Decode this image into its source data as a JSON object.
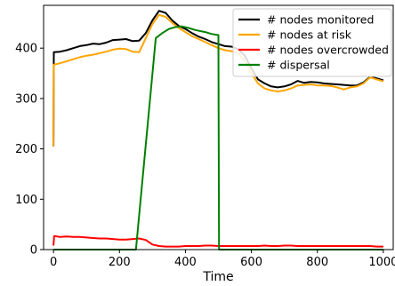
{
  "chart_data": {
    "type": "line",
    "title": "",
    "xlabel": "Time",
    "ylabel": "",
    "xlim": [
      -30,
      1030
    ],
    "ylim": [
      0,
      485
    ],
    "xticks": [
      0,
      200,
      400,
      600,
      800,
      1000
    ],
    "yticks": [
      0,
      100,
      200,
      300,
      400
    ],
    "grid": false,
    "legend_position": "top-right",
    "series": [
      {
        "name": "# nodes monitored",
        "color": "#000000",
        "points": [
          [
            0,
            205
          ],
          [
            1,
            392
          ],
          [
            20,
            393
          ],
          [
            40,
            396
          ],
          [
            60,
            400
          ],
          [
            80,
            404
          ],
          [
            100,
            406
          ],
          [
            120,
            409
          ],
          [
            140,
            408
          ],
          [
            160,
            411
          ],
          [
            180,
            416
          ],
          [
            200,
            417
          ],
          [
            220,
            418
          ],
          [
            240,
            414
          ],
          [
            260,
            415
          ],
          [
            280,
            430
          ],
          [
            300,
            455
          ],
          [
            320,
            474
          ],
          [
            340,
            470
          ],
          [
            360,
            455
          ],
          [
            380,
            444
          ],
          [
            400,
            438
          ],
          [
            420,
            430
          ],
          [
            440,
            423
          ],
          [
            460,
            418
          ],
          [
            480,
            412
          ],
          [
            500,
            408
          ],
          [
            520,
            404
          ],
          [
            540,
            403
          ],
          [
            560,
            398
          ],
          [
            580,
            385
          ],
          [
            600,
            360
          ],
          [
            620,
            338
          ],
          [
            640,
            330
          ],
          [
            660,
            324
          ],
          [
            680,
            322
          ],
          [
            700,
            324
          ],
          [
            720,
            328
          ],
          [
            740,
            335
          ],
          [
            760,
            331
          ],
          [
            780,
            333
          ],
          [
            800,
            332
          ],
          [
            820,
            330
          ],
          [
            840,
            329
          ],
          [
            860,
            328
          ],
          [
            880,
            327
          ],
          [
            900,
            326
          ],
          [
            920,
            326
          ],
          [
            940,
            332
          ],
          [
            960,
            343
          ],
          [
            980,
            340
          ],
          [
            1000,
            336
          ]
        ]
      },
      {
        "name": "# nodes at risk",
        "color": "#ffa500",
        "points": [
          [
            0,
            205
          ],
          [
            1,
            367
          ],
          [
            20,
            370
          ],
          [
            40,
            374
          ],
          [
            60,
            378
          ],
          [
            80,
            382
          ],
          [
            100,
            385
          ],
          [
            120,
            387
          ],
          [
            140,
            390
          ],
          [
            160,
            393
          ],
          [
            180,
            397
          ],
          [
            200,
            399
          ],
          [
            220,
            398
          ],
          [
            240,
            393
          ],
          [
            260,
            392
          ],
          [
            280,
            420
          ],
          [
            300,
            448
          ],
          [
            320,
            466
          ],
          [
            340,
            462
          ],
          [
            360,
            450
          ],
          [
            380,
            440
          ],
          [
            400,
            432
          ],
          [
            420,
            424
          ],
          [
            440,
            418
          ],
          [
            460,
            412
          ],
          [
            480,
            406
          ],
          [
            500,
            400
          ],
          [
            520,
            396
          ],
          [
            540,
            394
          ],
          [
            560,
            390
          ],
          [
            580,
            375
          ],
          [
            600,
            350
          ],
          [
            620,
            330
          ],
          [
            640,
            320
          ],
          [
            660,
            316
          ],
          [
            680,
            314
          ],
          [
            700,
            316
          ],
          [
            720,
            320
          ],
          [
            740,
            326
          ],
          [
            760,
            327
          ],
          [
            780,
            328
          ],
          [
            800,
            326
          ],
          [
            820,
            326
          ],
          [
            840,
            325
          ],
          [
            860,
            322
          ],
          [
            880,
            318
          ],
          [
            900,
            322
          ],
          [
            920,
            324
          ],
          [
            940,
            330
          ],
          [
            960,
            342
          ],
          [
            980,
            338
          ],
          [
            1000,
            334
          ]
        ]
      },
      {
        "name": "# nodes overcrowded",
        "color": "#ff0000",
        "points": [
          [
            0,
            8
          ],
          [
            2,
            27
          ],
          [
            20,
            25
          ],
          [
            40,
            26
          ],
          [
            60,
            25
          ],
          [
            80,
            25
          ],
          [
            100,
            24
          ],
          [
            120,
            23
          ],
          [
            140,
            22
          ],
          [
            160,
            22
          ],
          [
            180,
            21
          ],
          [
            200,
            20
          ],
          [
            220,
            20
          ],
          [
            240,
            21
          ],
          [
            260,
            22
          ],
          [
            280,
            19
          ],
          [
            300,
            10
          ],
          [
            320,
            7
          ],
          [
            340,
            6
          ],
          [
            360,
            6
          ],
          [
            380,
            6
          ],
          [
            400,
            7
          ],
          [
            420,
            7
          ],
          [
            440,
            7
          ],
          [
            460,
            8
          ],
          [
            480,
            8
          ],
          [
            500,
            7
          ],
          [
            520,
            7
          ],
          [
            540,
            7
          ],
          [
            560,
            7
          ],
          [
            580,
            7
          ],
          [
            600,
            7
          ],
          [
            620,
            7
          ],
          [
            640,
            8
          ],
          [
            660,
            7
          ],
          [
            680,
            7
          ],
          [
            700,
            8
          ],
          [
            720,
            8
          ],
          [
            740,
            7
          ],
          [
            760,
            7
          ],
          [
            780,
            7
          ],
          [
            800,
            7
          ],
          [
            820,
            7
          ],
          [
            840,
            7
          ],
          [
            860,
            7
          ],
          [
            880,
            7
          ],
          [
            900,
            7
          ],
          [
            920,
            7
          ],
          [
            940,
            7
          ],
          [
            960,
            7
          ],
          [
            980,
            6
          ],
          [
            1000,
            6
          ]
        ]
      },
      {
        "name": "# dispersal",
        "color": "#008000",
        "points": [
          [
            0,
            0
          ],
          [
            250,
            0
          ],
          [
            310,
            420
          ],
          [
            330,
            430
          ],
          [
            350,
            438
          ],
          [
            370,
            442
          ],
          [
            390,
            443
          ],
          [
            410,
            440
          ],
          [
            430,
            436
          ],
          [
            460,
            432
          ],
          [
            480,
            428
          ],
          [
            500,
            426
          ],
          [
            502,
            0
          ],
          [
            1000,
            0
          ]
        ]
      }
    ]
  }
}
